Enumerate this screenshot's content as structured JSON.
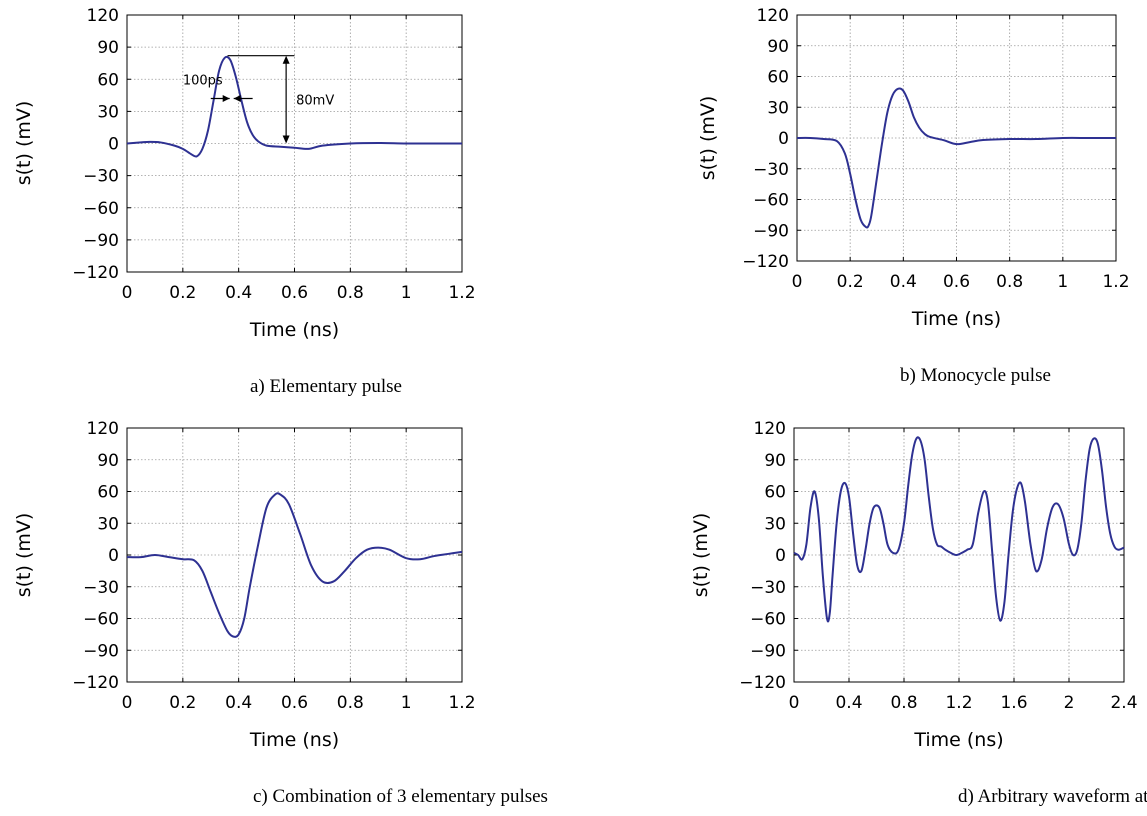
{
  "chart_data": [
    {
      "type": "line",
      "caption": "a)  Elementary pulse",
      "xlabel": "Time (ns)",
      "ylabel": "s(t) (mV)",
      "xlim": [
        0,
        1.2
      ],
      "ylim": [
        -120,
        120
      ],
      "xticks": [
        0,
        0.2,
        0.4,
        0.6,
        0.8,
        1,
        1.2
      ],
      "xtick_labels": [
        "0",
        "0.2",
        "0.4",
        "0.6",
        "0.8",
        "1",
        "1.2"
      ],
      "yticks": [
        120,
        90,
        60,
        30,
        0,
        -30,
        -60,
        -90,
        -120
      ],
      "ytick_labels": [
        "120",
        "90",
        "60",
        "30",
        "0",
        "−30",
        "−60",
        "−90",
        "−120"
      ],
      "grid": true,
      "line_color": "#2e3192",
      "annotations": [
        {
          "type": "width",
          "text": "100ps",
          "x_from": 0.3,
          "x_to": 0.45,
          "y": 42
        },
        {
          "type": "height",
          "text": "80mV",
          "x": 0.57,
          "y_from": 0,
          "y_to": 82
        }
      ],
      "series": [
        {
          "x": [
            0,
            0.05,
            0.08,
            0.12,
            0.17,
            0.2,
            0.23,
            0.25,
            0.27,
            0.29,
            0.31,
            0.33,
            0.35,
            0.37,
            0.39,
            0.41,
            0.43,
            0.45,
            0.47,
            0.5,
            0.55,
            0.6,
            0.65,
            0.7,
            0.8,
            0.9,
            1.0,
            1.1,
            1.2
          ],
          "y": [
            0,
            1,
            1.5,
            1,
            -2,
            -5,
            -10,
            -12,
            -5,
            12,
            40,
            68,
            80,
            78,
            62,
            40,
            20,
            8,
            2,
            -2,
            -3,
            -4,
            -5,
            -2,
            0,
            0.5,
            0,
            0,
            0
          ]
        }
      ]
    },
    {
      "type": "line",
      "caption": "b)  Monocycle pulse",
      "xlabel": "Time (ns)",
      "ylabel": "s(t) (mV)",
      "xlim": [
        0,
        1.2
      ],
      "ylim": [
        -120,
        120
      ],
      "xticks": [
        0,
        0.2,
        0.4,
        0.6,
        0.8,
        1,
        1.2
      ],
      "xtick_labels": [
        "0",
        "0.2",
        "0.4",
        "0.6",
        "0.8",
        "1",
        "1.2"
      ],
      "yticks": [
        120,
        90,
        60,
        30,
        0,
        -30,
        -60,
        -90,
        -120
      ],
      "ytick_labels": [
        "120",
        "90",
        "60",
        "30",
        "0",
        "−30",
        "−60",
        "−90",
        "−120"
      ],
      "grid": true,
      "line_color": "#2e3192",
      "series": [
        {
          "x": [
            0,
            0.05,
            0.1,
            0.15,
            0.18,
            0.2,
            0.22,
            0.24,
            0.26,
            0.27,
            0.28,
            0.3,
            0.32,
            0.34,
            0.36,
            0.38,
            0.4,
            0.42,
            0.44,
            0.46,
            0.48,
            0.5,
            0.55,
            0.6,
            0.65,
            0.7,
            0.8,
            0.9,
            1.0,
            1.1,
            1.2
          ],
          "y": [
            0,
            0,
            -1,
            -3,
            -15,
            -35,
            -60,
            -80,
            -87,
            -85,
            -75,
            -40,
            -5,
            25,
            42,
            48,
            46,
            35,
            20,
            10,
            4,
            1,
            -2,
            -6,
            -4,
            -2,
            -1,
            -1,
            0,
            0,
            0
          ]
        }
      ]
    },
    {
      "type": "line",
      "caption": "c)  Combination of 3 elementary pulses",
      "xlabel": "Time (ns)",
      "ylabel": "s(t) (mV)",
      "xlim": [
        0,
        1.2
      ],
      "ylim": [
        -120,
        120
      ],
      "xticks": [
        0,
        0.2,
        0.4,
        0.6,
        0.8,
        1,
        1.2
      ],
      "xtick_labels": [
        "0",
        "0.2",
        "0.4",
        "0.6",
        "0.8",
        "1",
        "1.2"
      ],
      "yticks": [
        120,
        90,
        60,
        30,
        0,
        -30,
        -60,
        -90,
        -120
      ],
      "ytick_labels": [
        "120",
        "90",
        "60",
        "30",
        "0",
        "−30",
        "−60",
        "−90",
        "−120"
      ],
      "grid": true,
      "line_color": "#2e3192",
      "series": [
        {
          "x": [
            0,
            0.05,
            0.1,
            0.15,
            0.2,
            0.24,
            0.27,
            0.3,
            0.33,
            0.36,
            0.38,
            0.4,
            0.42,
            0.44,
            0.47,
            0.5,
            0.53,
            0.55,
            0.58,
            0.62,
            0.66,
            0.7,
            0.74,
            0.78,
            0.82,
            0.86,
            0.9,
            0.94,
            1.0,
            1.05,
            1.1,
            1.15,
            1.2
          ],
          "y": [
            -2,
            -2,
            0,
            -2,
            -4,
            -5,
            -15,
            -35,
            -55,
            -72,
            -77,
            -75,
            -60,
            -30,
            10,
            45,
            57,
            57,
            48,
            20,
            -10,
            -25,
            -25,
            -15,
            -3,
            5,
            7,
            5,
            -3,
            -4,
            -1,
            1,
            3
          ]
        }
      ]
    },
    {
      "type": "line",
      "caption": "d)  Arbitrary waveform at maximal PRF",
      "xlabel": "Time (ns)",
      "ylabel": "s(t) (mV)",
      "xlim": [
        0,
        2.4
      ],
      "ylim": [
        -120,
        120
      ],
      "xticks": [
        0,
        0.4,
        0.8,
        1.2,
        1.6,
        2,
        2.4
      ],
      "xtick_labels": [
        "0",
        "0.4",
        "0.8",
        "1.2",
        "1.6",
        "2",
        "2.4"
      ],
      "yticks": [
        120,
        90,
        60,
        30,
        0,
        -30,
        -60,
        -90,
        -120
      ],
      "ytick_labels": [
        "120",
        "90",
        "60",
        "30",
        "0",
        "−30",
        "−60",
        "−90",
        "−120"
      ],
      "grid": true,
      "line_color": "#2e3192",
      "series": [
        {
          "x": [
            0,
            0.03,
            0.06,
            0.09,
            0.12,
            0.15,
            0.18,
            0.21,
            0.24,
            0.26,
            0.28,
            0.31,
            0.34,
            0.37,
            0.4,
            0.43,
            0.46,
            0.49,
            0.52,
            0.55,
            0.58,
            0.62,
            0.65,
            0.68,
            0.72,
            0.76,
            0.8,
            0.83,
            0.86,
            0.89,
            0.92,
            0.95,
            0.98,
            1.01,
            1.04,
            1.07,
            1.1,
            1.14,
            1.18,
            1.22,
            1.26,
            1.3,
            1.34,
            1.38,
            1.41,
            1.44,
            1.47,
            1.5,
            1.53,
            1.56,
            1.59,
            1.62,
            1.65,
            1.68,
            1.72,
            1.76,
            1.8,
            1.84,
            1.88,
            1.92,
            1.96,
            2.0,
            2.03,
            2.06,
            2.09,
            2.12,
            2.15,
            2.18,
            2.21,
            2.24,
            2.27,
            2.3,
            2.33,
            2.36,
            2.4
          ],
          "y": [
            2,
            0,
            -4,
            10,
            45,
            60,
            35,
            -20,
            -60,
            -55,
            -20,
            30,
            60,
            68,
            55,
            20,
            -10,
            -15,
            5,
            30,
            45,
            45,
            30,
            10,
            2,
            5,
            30,
            65,
            95,
            110,
            108,
            90,
            55,
            25,
            10,
            8,
            5,
            2,
            0,
            2,
            5,
            10,
            40,
            60,
            50,
            5,
            -40,
            -62,
            -45,
            0,
            40,
            62,
            68,
            50,
            10,
            -15,
            -5,
            25,
            45,
            48,
            35,
            10,
            0,
            5,
            30,
            70,
            100,
            110,
            105,
            80,
            45,
            20,
            8,
            5,
            7
          ]
        }
      ]
    }
  ]
}
